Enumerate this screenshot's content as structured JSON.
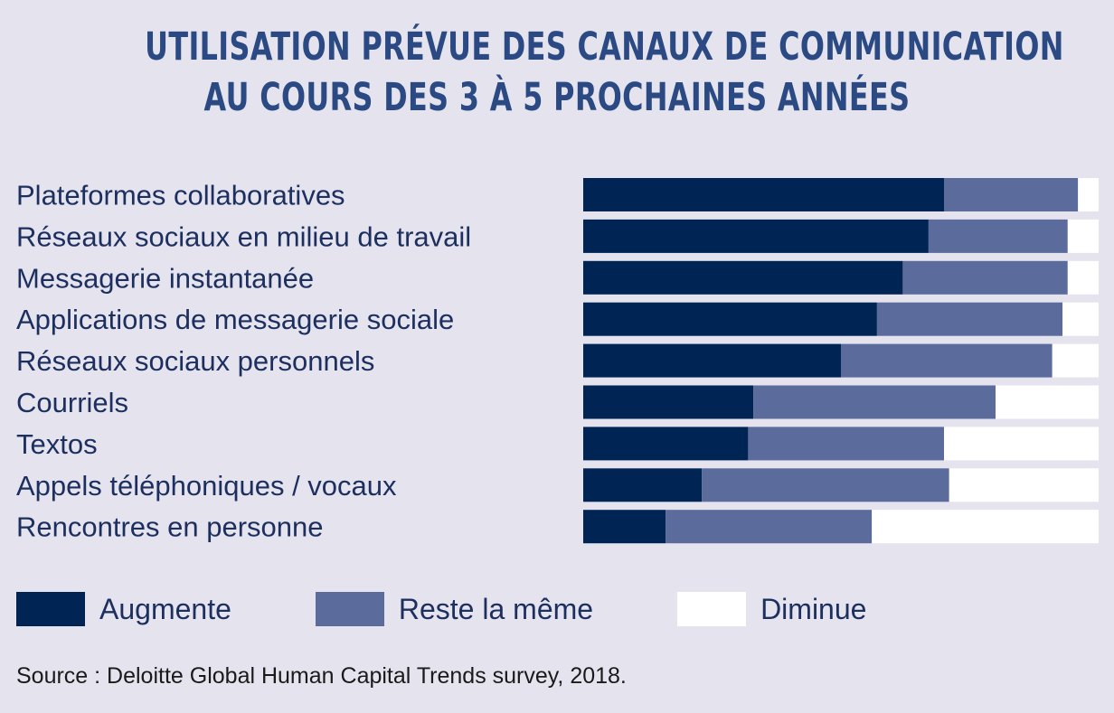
{
  "title_line1": "UTILISATION PRÉVUE DES CANAUX DE COMMUNICATION",
  "title_line2": "AU COURS DES 3 À 5 PROCHAINES ANNÉES",
  "colors": {
    "augmente": "#002555",
    "reste": "#5a6b9c",
    "diminue": "#ffffff",
    "title": "#2b4a83",
    "text": "#1c2f5e",
    "background": "#e4e3ee"
  },
  "chart_data": {
    "type": "bar",
    "orientation": "horizontal",
    "stacked": true,
    "categories": [
      "Plateformes collaboratives",
      "Réseaux sociaux en milieu de travail",
      "Messagerie instantanée",
      "Applications de messagerie sociale",
      "Réseaux sociaux personnels",
      "Courriels",
      "Textos",
      "Appels téléphoniques / vocaux",
      "Rencontres en personne"
    ],
    "series": [
      {
        "name": "Augmente",
        "values": [
          70,
          67,
          62,
          57,
          50,
          33,
          32,
          23,
          16
        ]
      },
      {
        "name": "Reste la même",
        "values": [
          26,
          27,
          32,
          36,
          41,
          47,
          38,
          48,
          40
        ]
      },
      {
        "name": "Diminue",
        "values": [
          4,
          6,
          6,
          7,
          9,
          20,
          30,
          29,
          44
        ]
      }
    ],
    "xlim": [
      0,
      100
    ],
    "grid": false,
    "legend_position": "bottom-left"
  },
  "source": "Source : Deloitte Global Human Capital Trends survey, 2018."
}
